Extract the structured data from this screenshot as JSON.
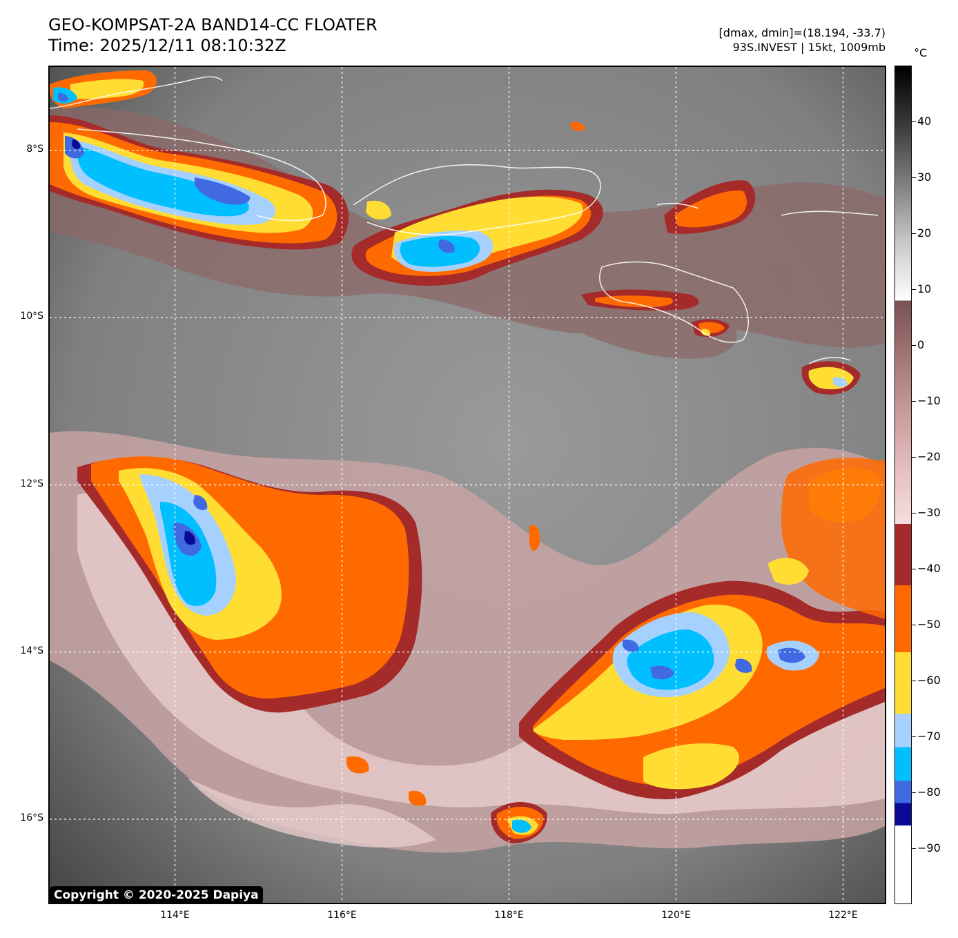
{
  "header": {
    "title_line1": "GEO-KOMPSAT-2A BAND14-CC FLOATER",
    "title_line2": "Time: 2025/12/11 08:10:32Z",
    "meta_line1": "[dmax, dmin]=(18.194, -33.7)",
    "meta_line2": "93S.INVEST | 15kt, 1009mb"
  },
  "colorbar": {
    "unit": "°C",
    "ticks": [
      {
        "value": 40,
        "label": "40"
      },
      {
        "value": 30,
        "label": "30"
      },
      {
        "value": 20,
        "label": "20"
      },
      {
        "value": 10,
        "label": "10"
      },
      {
        "value": 0,
        "label": "0"
      },
      {
        "value": -10,
        "label": "−10"
      },
      {
        "value": -20,
        "label": "−20"
      },
      {
        "value": -30,
        "label": "−30"
      },
      {
        "value": -40,
        "label": "−40"
      },
      {
        "value": -50,
        "label": "−50"
      },
      {
        "value": -60,
        "label": "−60"
      },
      {
        "value": -70,
        "label": "−70"
      },
      {
        "value": -80,
        "label": "−80"
      },
      {
        "value": -90,
        "label": "−90"
      }
    ],
    "range": [
      -100,
      50
    ],
    "bands": [
      {
        "from": -100,
        "to": -86,
        "color": "#ffffff"
      },
      {
        "from": -86,
        "to": -82,
        "color": "#0a0a96"
      },
      {
        "from": -82,
        "to": -78,
        "color": "#4169e1"
      },
      {
        "from": -78,
        "to": -72,
        "color": "#00bfff"
      },
      {
        "from": -72,
        "to": -66,
        "color": "#a6d1ff"
      },
      {
        "from": -66,
        "to": -55,
        "color": "#ffdd33"
      },
      {
        "from": -55,
        "to": -43,
        "color": "#ff6a00"
      },
      {
        "from": -43,
        "to": -32,
        "color": "#a52a2a"
      },
      {
        "from": -32,
        "to": 8,
        "gradient": [
          "#f6dede",
          "#e6bebe",
          "#c99a9a",
          "#a37575",
          "#7a5252"
        ]
      },
      {
        "from": 8,
        "to": 50,
        "gradient": [
          "#ffffff",
          "#c8c8c8",
          "#7e7e7e",
          "#3a3a3a",
          "#000000"
        ]
      }
    ]
  },
  "map": {
    "lat_labels": [
      {
        "lat": -8,
        "label": "8°S"
      },
      {
        "lat": -10,
        "label": "10°S"
      },
      {
        "lat": -12,
        "label": "12°S"
      },
      {
        "lat": -14,
        "label": "14°S"
      },
      {
        "lat": -16,
        "label": "16°S"
      }
    ],
    "lon_labels": [
      {
        "lon": 114,
        "label": "114°E"
      },
      {
        "lon": 116,
        "label": "116°E"
      },
      {
        "lon": 118,
        "label": "118°E"
      },
      {
        "lon": 120,
        "label": "120°E"
      },
      {
        "lon": 122,
        "label": "122°E"
      }
    ],
    "lon_range": [
      112.5,
      122.5
    ],
    "lat_range": [
      -7.0,
      -17.0
    ]
  },
  "copyright": "Copyright © 2020-2025 Dapiya"
}
